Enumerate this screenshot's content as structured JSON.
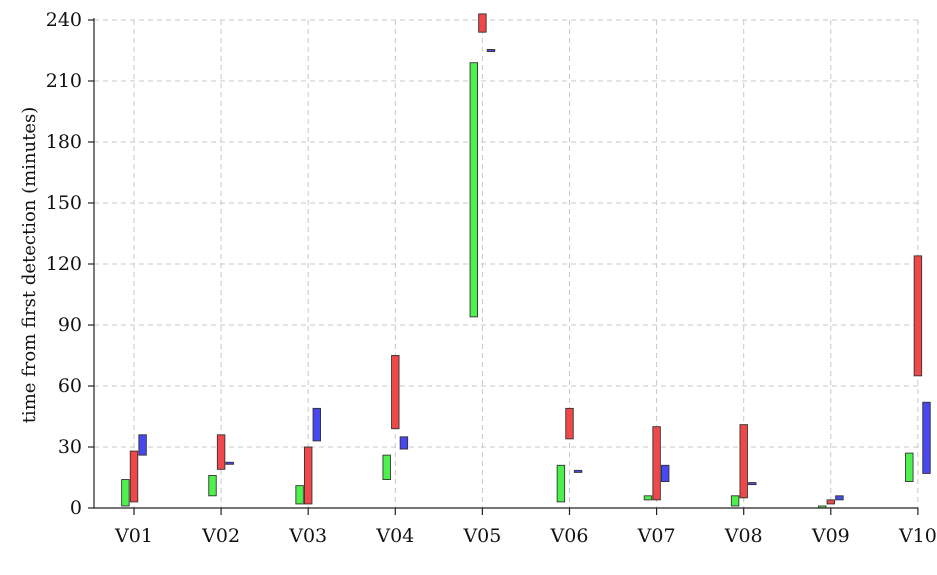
{
  "chart_data": {
    "type": "bar",
    "subtype": "floating-range",
    "title": "",
    "xlabel": "",
    "ylabel": "time from first detection (minutes)",
    "ylim": [
      0,
      240
    ],
    "yticks": [
      0,
      30,
      60,
      90,
      120,
      150,
      180,
      210,
      240
    ],
    "grid": true,
    "legend": "none",
    "categories": [
      "V01",
      "V02",
      "V03",
      "V04",
      "V05",
      "V06",
      "V07",
      "V08",
      "V09",
      "V10"
    ],
    "series": [
      {
        "color": "#4ef04e",
        "ranges": [
          [
            1,
            14
          ],
          [
            6,
            16
          ],
          [
            2,
            11
          ],
          [
            14,
            26
          ],
          [
            94,
            219
          ],
          [
            3,
            21
          ],
          [
            4,
            6
          ],
          [
            1,
            6
          ],
          [
            0,
            1
          ],
          [
            13,
            27
          ]
        ]
      },
      {
        "color": "#f04848",
        "ranges": [
          [
            3,
            28
          ],
          [
            19,
            36
          ],
          [
            2,
            30
          ],
          [
            39,
            75
          ],
          [
            234,
            243
          ],
          [
            34,
            49
          ],
          [
            4,
            40
          ],
          [
            5,
            41
          ],
          [
            2,
            4
          ],
          [
            65,
            124
          ]
        ]
      },
      {
        "color": "#4848f0",
        "ranges": [
          [
            26,
            36
          ],
          [
            21.5,
            22.5
          ],
          [
            33,
            49
          ],
          [
            29,
            35
          ],
          [
            224.5,
            225.5
          ],
          [
            17.5,
            18.5
          ],
          [
            13,
            21
          ],
          [
            11.5,
            12.5
          ],
          [
            4,
            6
          ],
          [
            17,
            52
          ]
        ]
      }
    ]
  }
}
